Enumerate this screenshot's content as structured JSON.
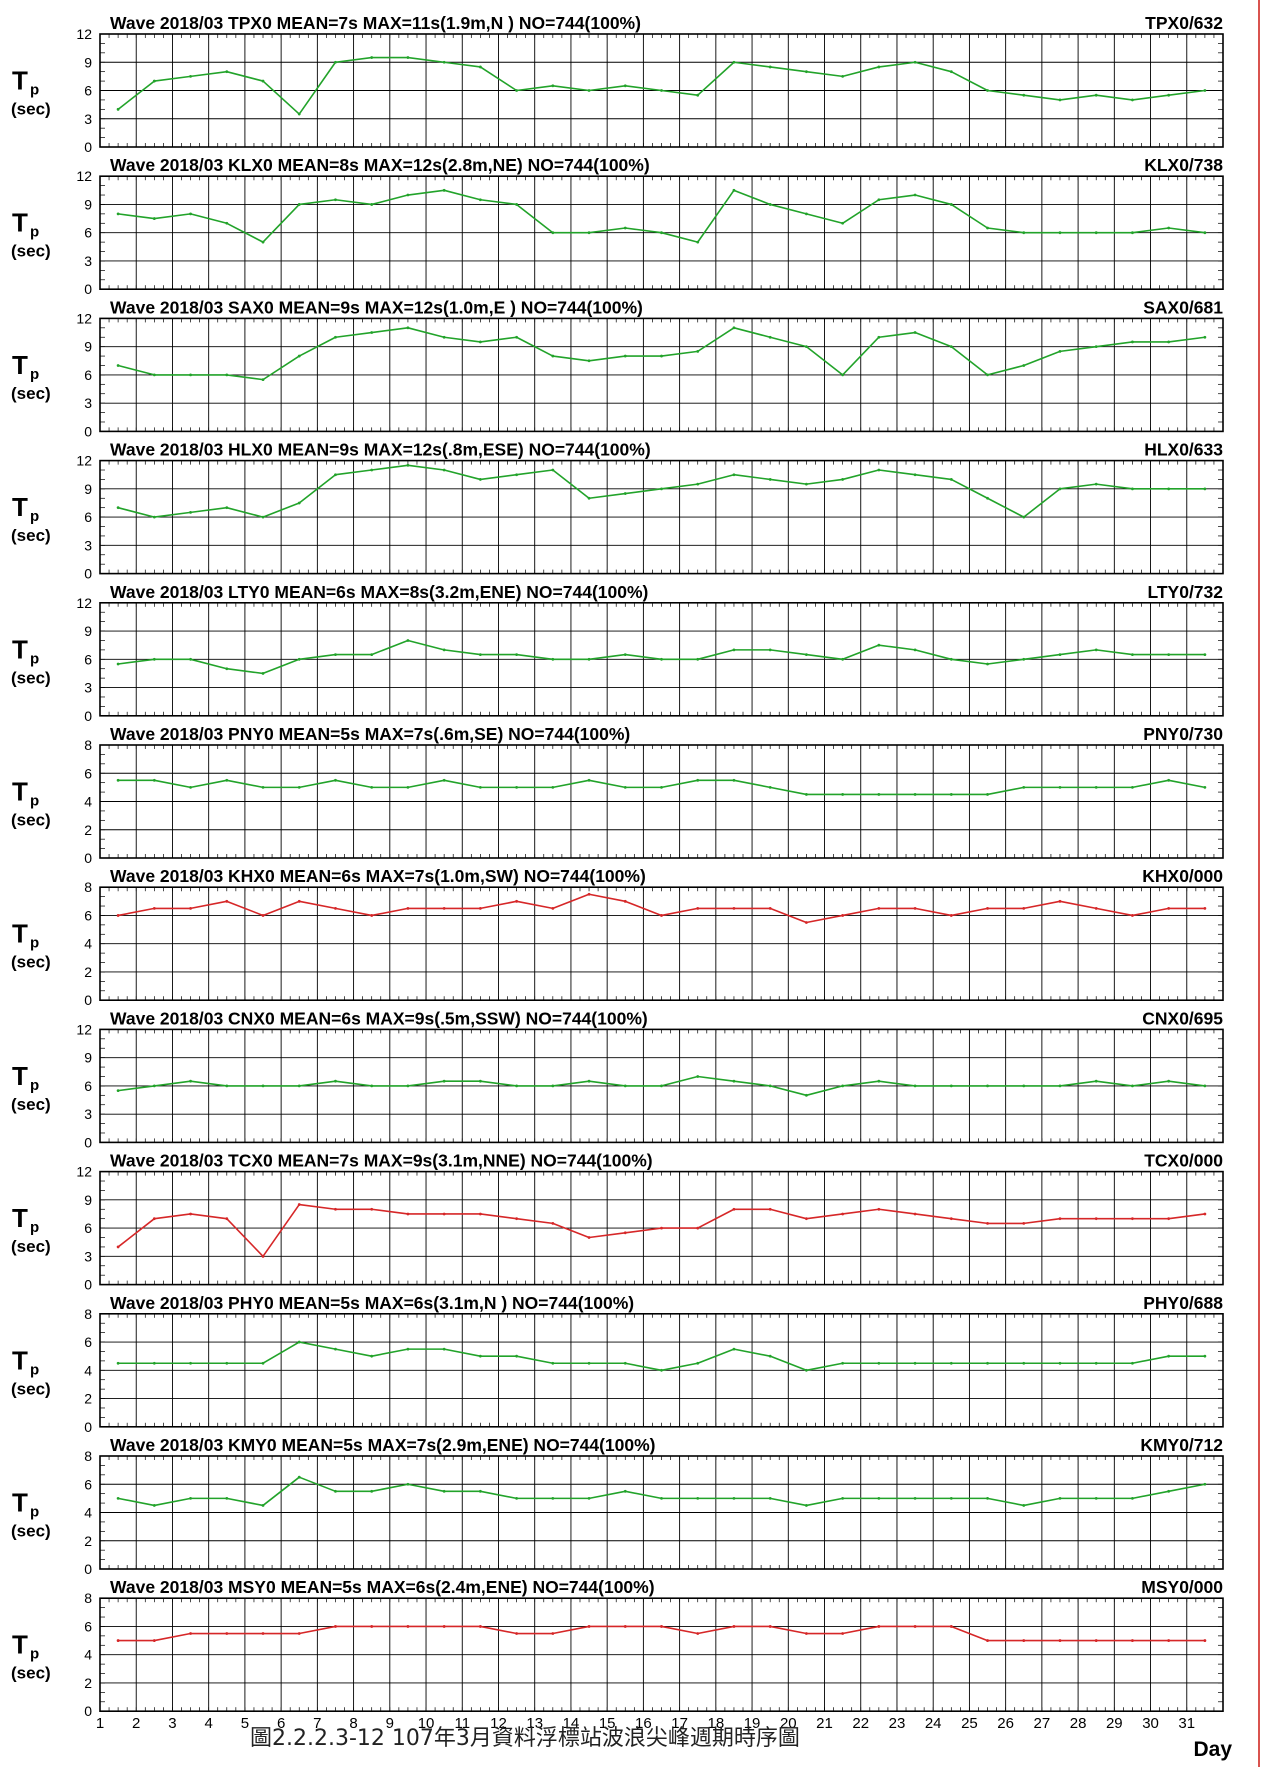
{
  "figure": {
    "ylabel_main": "T",
    "ylabel_sub": "p",
    "ylabel_unit": "(sec)",
    "xlabel": "Day",
    "caption": "圖2.2.2.3-12  107年3月資料浮標站波浪尖峰週期時序圖",
    "colors": {
      "series_primary": "#22a32a",
      "series_secondary": "#d62728",
      "grid": "#000000",
      "rule": "#d9534f"
    }
  },
  "chart_data": [
    {
      "type": "line",
      "title": "Wave 2018/03 TPX0 MEAN=7s MAX=11s(1.9m,N )  NO=744(100%)",
      "station_id": "TPX0/632",
      "ylim": [
        0,
        12
      ],
      "yticks": [
        0,
        3,
        6,
        9,
        12
      ],
      "x": [
        1,
        2,
        3,
        4,
        5,
        6,
        7,
        8,
        9,
        10,
        11,
        12,
        13,
        14,
        15,
        16,
        17,
        18,
        19,
        20,
        21,
        22,
        23,
        24,
        25,
        26,
        27,
        28,
        29,
        30,
        31
      ],
      "series": [
        {
          "values": [
            4,
            7,
            7.5,
            8,
            7,
            3.5,
            9,
            9.5,
            9.5,
            9,
            8.5,
            6,
            6.5,
            6,
            6.5,
            6,
            5.5,
            9,
            8.5,
            8,
            7.5,
            8.5,
            9,
            8,
            6,
            5.5,
            5,
            5.5,
            5,
            5.5,
            6
          ]
        }
      ]
    },
    {
      "type": "line",
      "title": "Wave 2018/03 KLX0 MEAN=8s MAX=12s(2.8m,NE)  NO=744(100%)",
      "station_id": "KLX0/738",
      "ylim": [
        0,
        12
      ],
      "yticks": [
        0,
        3,
        6,
        9,
        12
      ],
      "x": [
        1,
        2,
        3,
        4,
        5,
        6,
        7,
        8,
        9,
        10,
        11,
        12,
        13,
        14,
        15,
        16,
        17,
        18,
        19,
        20,
        21,
        22,
        23,
        24,
        25,
        26,
        27,
        28,
        29,
        30,
        31
      ],
      "series": [
        {
          "values": [
            8,
            7.5,
            8,
            7,
            5,
            9,
            9.5,
            9,
            10,
            10.5,
            9.5,
            9,
            6,
            6,
            6.5,
            6,
            5,
            10.5,
            9,
            8,
            7,
            9.5,
            10,
            9,
            6.5,
            6,
            6,
            6,
            6,
            6.5,
            6
          ]
        }
      ]
    },
    {
      "type": "line",
      "title": "Wave 2018/03 SAX0 MEAN=9s MAX=12s(1.0m,E )  NO=744(100%)",
      "station_id": "SAX0/681",
      "ylim": [
        0,
        12
      ],
      "yticks": [
        0,
        3,
        6,
        9,
        12
      ],
      "x": [
        1,
        2,
        3,
        4,
        5,
        6,
        7,
        8,
        9,
        10,
        11,
        12,
        13,
        14,
        15,
        16,
        17,
        18,
        19,
        20,
        21,
        22,
        23,
        24,
        25,
        26,
        27,
        28,
        29,
        30,
        31
      ],
      "series": [
        {
          "values": [
            7,
            6,
            6,
            6,
            5.5,
            8,
            10,
            10.5,
            11,
            10,
            9.5,
            10,
            8,
            7.5,
            8,
            8,
            8.5,
            11,
            10,
            9,
            6,
            10,
            10.5,
            9,
            6,
            7,
            8.5,
            9,
            9.5,
            9.5,
            10
          ]
        }
      ]
    },
    {
      "type": "line",
      "title": "Wave 2018/03 HLX0 MEAN=9s MAX=12s(.8m,ESE)  NO=744(100%)",
      "station_id": "HLX0/633",
      "ylim": [
        0,
        12
      ],
      "yticks": [
        0,
        3,
        6,
        9,
        12
      ],
      "x": [
        1,
        2,
        3,
        4,
        5,
        6,
        7,
        8,
        9,
        10,
        11,
        12,
        13,
        14,
        15,
        16,
        17,
        18,
        19,
        20,
        21,
        22,
        23,
        24,
        25,
        26,
        27,
        28,
        29,
        30,
        31
      ],
      "series": [
        {
          "values": [
            7,
            6,
            6.5,
            7,
            6,
            7.5,
            10.5,
            11,
            11.5,
            11,
            10,
            10.5,
            11,
            8,
            8.5,
            9,
            9.5,
            10.5,
            10,
            9.5,
            10,
            11,
            10.5,
            10,
            8,
            6,
            9,
            9.5,
            9,
            9,
            9
          ]
        }
      ]
    },
    {
      "type": "line",
      "title": "Wave 2018/03 LTY0 MEAN=6s MAX=8s(3.2m,ENE)  NO=744(100%)",
      "station_id": "LTY0/732",
      "ylim": [
        0,
        12
      ],
      "yticks": [
        0,
        3,
        6,
        9,
        12
      ],
      "x": [
        1,
        2,
        3,
        4,
        5,
        6,
        7,
        8,
        9,
        10,
        11,
        12,
        13,
        14,
        15,
        16,
        17,
        18,
        19,
        20,
        21,
        22,
        23,
        24,
        25,
        26,
        27,
        28,
        29,
        30,
        31
      ],
      "series": [
        {
          "values": [
            5.5,
            6,
            6,
            5,
            4.5,
            6,
            6.5,
            6.5,
            8,
            7,
            6.5,
            6.5,
            6,
            6,
            6.5,
            6,
            6,
            7,
            7,
            6.5,
            6,
            7.5,
            7,
            6,
            5.5,
            6,
            6.5,
            7,
            6.5,
            6.5,
            6.5
          ]
        }
      ]
    },
    {
      "type": "line",
      "title": "Wave 2018/03 PNY0 MEAN=5s MAX=7s(.6m,SE)  NO=744(100%)",
      "station_id": "PNY0/730",
      "ylim": [
        0,
        8
      ],
      "yticks": [
        0,
        2,
        4,
        6,
        8
      ],
      "x": [
        1,
        2,
        3,
        4,
        5,
        6,
        7,
        8,
        9,
        10,
        11,
        12,
        13,
        14,
        15,
        16,
        17,
        18,
        19,
        20,
        21,
        22,
        23,
        24,
        25,
        26,
        27,
        28,
        29,
        30,
        31
      ],
      "series": [
        {
          "values": [
            5.5,
            5.5,
            5,
            5.5,
            5,
            5,
            5.5,
            5,
            5,
            5.5,
            5,
            5,
            5,
            5.5,
            5,
            5,
            5.5,
            5.5,
            5,
            4.5,
            4.5,
            4.5,
            4.5,
            4.5,
            4.5,
            5,
            5,
            5,
            5,
            5.5,
            5
          ]
        }
      ]
    },
    {
      "type": "line",
      "title": "Wave 2018/03 KHX0 MEAN=6s MAX=7s(1.0m,SW)  NO=744(100%)",
      "station_id": "KHX0/000",
      "ylim": [
        0,
        8
      ],
      "yticks": [
        0,
        2,
        4,
        6,
        8
      ],
      "x": [
        1,
        2,
        3,
        4,
        5,
        6,
        7,
        8,
        9,
        10,
        11,
        12,
        13,
        14,
        15,
        16,
        17,
        18,
        19,
        20,
        21,
        22,
        23,
        24,
        25,
        26,
        27,
        28,
        29,
        30,
        31
      ],
      "series": [
        {
          "values": [
            6,
            6.5,
            6.5,
            7,
            6,
            7,
            6.5,
            6,
            6.5,
            6.5,
            6.5,
            7,
            6.5,
            7.5,
            7,
            6,
            6.5,
            6.5,
            6.5,
            5.5,
            6,
            6.5,
            6.5,
            6,
            6.5,
            6.5,
            7,
            6.5,
            6,
            6.5,
            6.5
          ]
        }
      ]
    },
    {
      "type": "line",
      "title": "Wave 2018/03 CNX0 MEAN=6s MAX=9s(.5m,SSW)  NO=744(100%)",
      "station_id": "CNX0/695",
      "ylim": [
        0,
        12
      ],
      "yticks": [
        0,
        3,
        6,
        9,
        12
      ],
      "x": [
        1,
        2,
        3,
        4,
        5,
        6,
        7,
        8,
        9,
        10,
        11,
        12,
        13,
        14,
        15,
        16,
        17,
        18,
        19,
        20,
        21,
        22,
        23,
        24,
        25,
        26,
        27,
        28,
        29,
        30,
        31
      ],
      "series": [
        {
          "values": [
            5.5,
            6,
            6.5,
            6,
            6,
            6,
            6.5,
            6,
            6,
            6.5,
            6.5,
            6,
            6,
            6.5,
            6,
            6,
            7,
            6.5,
            6,
            5,
            6,
            6.5,
            6,
            6,
            6,
            6,
            6,
            6.5,
            6,
            6.5,
            6
          ]
        }
      ]
    },
    {
      "type": "line",
      "title": "Wave 2018/03 TCX0 MEAN=7s MAX=9s(3.1m,NNE)  NO=744(100%)",
      "station_id": "TCX0/000",
      "ylim": [
        0,
        12
      ],
      "yticks": [
        0,
        3,
        6,
        9,
        12
      ],
      "x": [
        1,
        2,
        3,
        4,
        5,
        6,
        7,
        8,
        9,
        10,
        11,
        12,
        13,
        14,
        15,
        16,
        17,
        18,
        19,
        20,
        21,
        22,
        23,
        24,
        25,
        26,
        27,
        28,
        29,
        30,
        31
      ],
      "series": [
        {
          "values": [
            4,
            7,
            7.5,
            7,
            3,
            8.5,
            8,
            8,
            7.5,
            7.5,
            7.5,
            7,
            6.5,
            5,
            5.5,
            6,
            6,
            8,
            8,
            7,
            7.5,
            8,
            7.5,
            7,
            6.5,
            6.5,
            7,
            7,
            7,
            7,
            7.5
          ]
        }
      ]
    },
    {
      "type": "line",
      "title": "Wave 2018/03 PHY0 MEAN=5s MAX=6s(3.1m,N )  NO=744(100%)",
      "station_id": "PHY0/688",
      "ylim": [
        0,
        8
      ],
      "yticks": [
        0,
        2,
        4,
        6,
        8
      ],
      "x": [
        1,
        2,
        3,
        4,
        5,
        6,
        7,
        8,
        9,
        10,
        11,
        12,
        13,
        14,
        15,
        16,
        17,
        18,
        19,
        20,
        21,
        22,
        23,
        24,
        25,
        26,
        27,
        28,
        29,
        30,
        31
      ],
      "series": [
        {
          "values": [
            4.5,
            4.5,
            4.5,
            4.5,
            4.5,
            6,
            5.5,
            5,
            5.5,
            5.5,
            5,
            5,
            4.5,
            4.5,
            4.5,
            4,
            4.5,
            5.5,
            5,
            4,
            4.5,
            4.5,
            4.5,
            4.5,
            4.5,
            4.5,
            4.5,
            4.5,
            4.5,
            5,
            5
          ]
        }
      ]
    },
    {
      "type": "line",
      "title": "Wave 2018/03 KMY0 MEAN=5s MAX=7s(2.9m,ENE)  NO=744(100%)",
      "station_id": "KMY0/712",
      "ylim": [
        0,
        8
      ],
      "yticks": [
        0,
        2,
        4,
        6,
        8
      ],
      "x": [
        1,
        2,
        3,
        4,
        5,
        6,
        7,
        8,
        9,
        10,
        11,
        12,
        13,
        14,
        15,
        16,
        17,
        18,
        19,
        20,
        21,
        22,
        23,
        24,
        25,
        26,
        27,
        28,
        29,
        30,
        31
      ],
      "series": [
        {
          "values": [
            5,
            4.5,
            5,
            5,
            4.5,
            6.5,
            5.5,
            5.5,
            6,
            5.5,
            5.5,
            5,
            5,
            5,
            5.5,
            5,
            5,
            5,
            5,
            4.5,
            5,
            5,
            5,
            5,
            5,
            4.5,
            5,
            5,
            5,
            5.5,
            6
          ]
        }
      ]
    },
    {
      "type": "line",
      "title": "Wave 2018/03 MSY0 MEAN=5s MAX=6s(2.4m,ENE)  NO=744(100%)",
      "station_id": "MSY0/000",
      "ylim": [
        0,
        8
      ],
      "yticks": [
        0,
        2,
        4,
        6,
        8
      ],
      "x": [
        1,
        2,
        3,
        4,
        5,
        6,
        7,
        8,
        9,
        10,
        11,
        12,
        13,
        14,
        15,
        16,
        17,
        18,
        19,
        20,
        21,
        22,
        23,
        24,
        25,
        26,
        27,
        28,
        29,
        30,
        31
      ],
      "series": [
        {
          "values": [
            5,
            5,
            5.5,
            5.5,
            5.5,
            5.5,
            6,
            6,
            6,
            6,
            6,
            5.5,
            5.5,
            6,
            6,
            6,
            5.5,
            6,
            6,
            5.5,
            5.5,
            6,
            6,
            6,
            5,
            5,
            5,
            5,
            5,
            5,
            5
          ]
        }
      ]
    }
  ]
}
